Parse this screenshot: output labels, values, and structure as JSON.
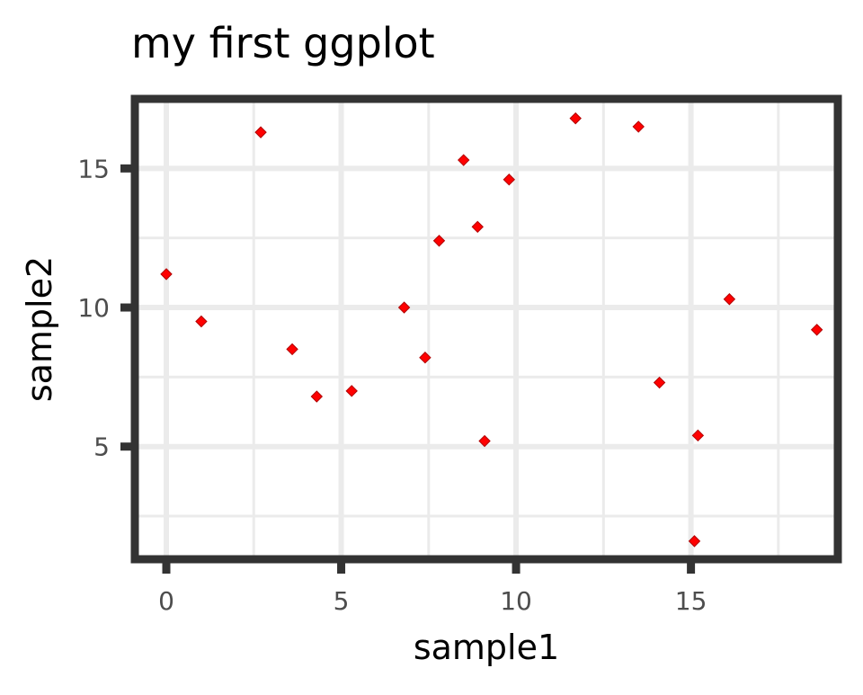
{
  "chart_data": {
    "type": "scatter",
    "title": "my first ggplot",
    "xlabel": "sample1",
    "ylabel": "sample2",
    "xlim": [
      -0.9,
      19.2
    ],
    "ylim": [
      0.95,
      17.5
    ],
    "x_ticks": [
      0,
      5,
      10,
      15
    ],
    "x_tick_labels": [
      "0",
      "5",
      "10",
      "15"
    ],
    "y_ticks": [
      5,
      10,
      15
    ],
    "y_tick_labels": [
      "5",
      "10",
      "15"
    ],
    "x_minor_gridlines": [
      2.5,
      7.5,
      12.5,
      17.5
    ],
    "y_minor_gridlines": [
      2.5,
      7.5,
      12.5
    ],
    "grid": true,
    "legend": "none",
    "point_shape": "diamond",
    "colors": {
      "point_fill": "#ff0000",
      "point_stroke": "#b00000",
      "panel_border": "#333333",
      "grid": "#ebebeb",
      "tick_label": "#4d4d4d",
      "text": "#000000"
    },
    "series": [
      {
        "x": [
          0.0,
          1.0,
          2.7,
          3.6,
          4.3,
          5.3,
          6.8,
          7.4,
          7.8,
          8.5,
          8.9,
          9.1,
          9.8,
          11.7,
          13.5,
          14.1,
          15.1,
          15.2,
          16.1,
          18.6
        ],
        "y": [
          11.2,
          9.5,
          16.3,
          8.5,
          6.8,
          7.0,
          10.0,
          8.2,
          12.4,
          15.3,
          12.9,
          5.2,
          14.6,
          16.8,
          16.5,
          7.3,
          1.6,
          5.4,
          10.3,
          9.2
        ]
      }
    ]
  }
}
